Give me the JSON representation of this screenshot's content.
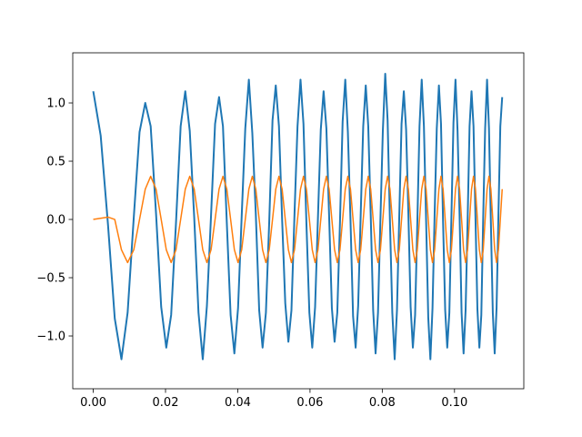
{
  "chart_data": {
    "type": "line",
    "x": [
      0,
      0.00205,
      0.00409,
      0.00595,
      0.0078,
      0.00951,
      0.01122,
      0.01281,
      0.01439,
      0.01589,
      0.01738,
      0.0188,
      0.02021,
      0.02156,
      0.0229,
      0.02419,
      0.02547,
      0.02671,
      0.02794,
      0.02913,
      0.03031,
      0.03146,
      0.03261,
      0.03372,
      0.03482,
      0.0359,
      0.03697,
      0.03802,
      0.03906,
      0.04008,
      0.04109,
      0.04208,
      0.04307,
      0.04403,
      0.04499,
      0.04593,
      0.04687,
      0.04779,
      0.04871,
      0.04962,
      0.05052,
      0.0514,
      0.05228,
      0.05315,
      0.05401,
      0.05486,
      0.05571,
      0.05654,
      0.05737,
      0.05819,
      0.05901,
      0.05982,
      0.06062,
      0.06141,
      0.0622,
      0.06298,
      0.06376,
      0.06453,
      0.06529,
      0.06605,
      0.0668,
      0.06755,
      0.06829,
      0.06903,
      0.06976,
      0.07048,
      0.0712,
      0.07192,
      0.07263,
      0.07333,
      0.07403,
      0.07473,
      0.07543,
      0.07612,
      0.0768,
      0.07748,
      0.07815,
      0.07882,
      0.07949,
      0.08016,
      0.08082,
      0.08148,
      0.08213,
      0.08278,
      0.08343,
      0.08407,
      0.08471,
      0.08534,
      0.08597,
      0.0866,
      0.08723,
      0.08785,
      0.08847,
      0.08909,
      0.0897,
      0.09031,
      0.09092,
      0.09153,
      0.09213,
      0.09273,
      0.09332,
      0.09391,
      0.0945,
      0.09509,
      0.09568,
      0.09626,
      0.09684,
      0.09742,
      0.09799,
      0.09857,
      0.09914,
      0.09971,
      0.10027,
      0.10084,
      0.1014,
      0.10196,
      0.10251,
      0.10307,
      0.10362,
      0.10417,
      0.10471,
      0.10526,
      0.1058,
      0.10634,
      0.10688,
      0.10742,
      0.10795,
      0.10848,
      0.10901,
      0.10954,
      0.11007,
      0.1106,
      0.11112,
      0.11164,
      0.11216,
      0.11268,
      0.1132
    ],
    "series": [
      {
        "color": "#1f77b4",
        "values": [
          1.1,
          0.72,
          -0.05,
          -0.85,
          -1.2,
          -0.8,
          0.02,
          0.75,
          1.0,
          0.8,
          0.05,
          -0.75,
          -1.1,
          -0.82,
          -0.03,
          0.8,
          1.1,
          0.76,
          0.02,
          -0.8,
          -1.2,
          -0.74,
          0.04,
          0.82,
          1.05,
          0.8,
          -0.03,
          -0.82,
          -1.15,
          -0.76,
          0.03,
          0.78,
          1.2,
          0.74,
          0.05,
          -0.78,
          -1.1,
          -0.8,
          -0.02,
          0.85,
          1.15,
          0.8,
          0.0,
          -0.72,
          -1.05,
          -0.78,
          0.05,
          0.8,
          1.2,
          0.82,
          -0.04,
          -0.8,
          -1.1,
          -0.75,
          0.02,
          0.77,
          1.1,
          0.78,
          0.03,
          -0.76,
          -1.05,
          -0.8,
          -0.03,
          0.84,
          1.2,
          0.75,
          0.0,
          -0.83,
          -1.1,
          -0.74,
          0.04,
          0.8,
          1.15,
          0.8,
          0.04,
          -0.78,
          -1.15,
          -0.8,
          0.0,
          0.76,
          1.25,
          0.85,
          -0.02,
          -0.8,
          -1.2,
          -0.78,
          0.03,
          0.82,
          1.1,
          0.77,
          0.05,
          -0.75,
          -1.1,
          -0.82,
          -0.04,
          0.8,
          1.2,
          0.8,
          0.0,
          -0.84,
          -1.2,
          -0.76,
          0.05,
          0.78,
          1.15,
          0.82,
          -0.03,
          -0.78,
          -1.1,
          -0.8,
          0.02,
          0.83,
          1.2,
          0.76,
          0.04,
          -0.8,
          -1.15,
          -0.78,
          -0.02,
          0.8,
          1.1,
          0.8,
          0.02,
          -0.77,
          -1.1,
          -0.82,
          0.03,
          0.78,
          1.2,
          0.78,
          -0.03,
          -0.8,
          -1.15,
          -0.76,
          0.04,
          0.8,
          1.05
        ]
      },
      {
        "color": "#ff7f0e",
        "values": [
          0,
          0.01,
          0.02,
          0,
          -0.26,
          -0.37,
          -0.26,
          0,
          0.26,
          0.37,
          0.26,
          0,
          -0.26,
          -0.37,
          -0.26,
          0,
          0.26,
          0.37,
          0.26,
          0,
          -0.26,
          -0.37,
          -0.26,
          0,
          0.26,
          0.37,
          0.26,
          0,
          -0.26,
          -0.37,
          -0.26,
          0,
          0.26,
          0.37,
          0.26,
          0,
          -0.26,
          -0.37,
          -0.26,
          0,
          0.26,
          0.37,
          0.26,
          0,
          -0.26,
          -0.37,
          -0.26,
          0,
          0.26,
          0.37,
          0.26,
          0,
          -0.26,
          -0.37,
          -0.26,
          0,
          0.26,
          0.37,
          0.26,
          0,
          -0.26,
          -0.37,
          -0.26,
          0,
          0.26,
          0.37,
          0.26,
          0,
          -0.26,
          -0.37,
          -0.26,
          0,
          0.26,
          0.37,
          0.26,
          0,
          -0.26,
          -0.37,
          -0.26,
          0,
          0.26,
          0.37,
          0.26,
          0,
          -0.26,
          -0.37,
          -0.26,
          0,
          0.26,
          0.37,
          0.26,
          0,
          -0.26,
          -0.37,
          -0.26,
          0,
          0.26,
          0.37,
          0.26,
          0,
          -0.26,
          -0.37,
          -0.26,
          0,
          0.26,
          0.37,
          0.26,
          0,
          -0.26,
          -0.37,
          -0.26,
          0,
          0.26,
          0.37,
          0.26,
          0,
          -0.26,
          -0.37,
          -0.26,
          0,
          0.26,
          0.37,
          0.26,
          0,
          -0.26,
          -0.37,
          -0.26,
          0,
          0.26,
          0.37,
          0.26,
          0,
          -0.26,
          -0.37,
          -0.26,
          0,
          0.26
        ]
      }
    ],
    "xlim": [
      -0.00568,
      0.11918
    ],
    "ylim": [
      -1.453,
      1.43
    ],
    "xticks": [
      {
        "value": 0,
        "label": "0.00"
      },
      {
        "value": 0.02,
        "label": "0.02"
      },
      {
        "value": 0.04,
        "label": "0.04"
      },
      {
        "value": 0.06,
        "label": "0.06"
      },
      {
        "value": 0.08,
        "label": "0.08"
      },
      {
        "value": 0.1,
        "label": "0.10"
      }
    ],
    "yticks": [
      {
        "value": -1,
        "label": "−1.0"
      },
      {
        "value": -0.5,
        "label": "−0.5"
      },
      {
        "value": 0,
        "label": "0.0"
      },
      {
        "value": 0.5,
        "label": "0.5"
      },
      {
        "value": 1,
        "label": "1.0"
      }
    ],
    "grid": false
  }
}
